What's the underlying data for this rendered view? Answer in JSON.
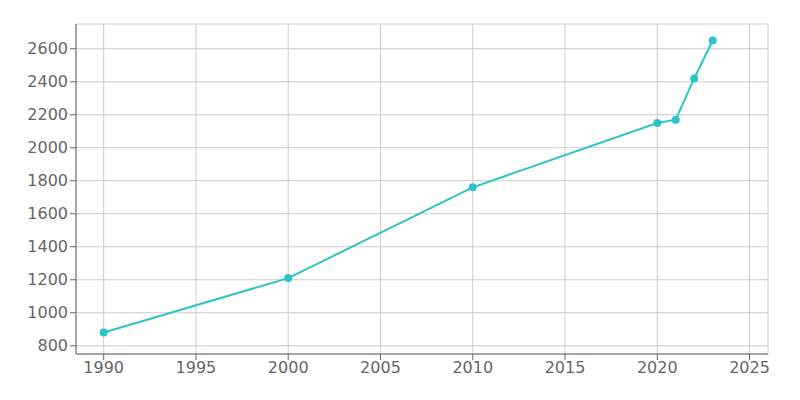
{
  "chart_data": {
    "type": "line",
    "x": [
      1990,
      2000,
      2010,
      2020,
      2021,
      2022,
      2023
    ],
    "values": [
      880,
      1210,
      1760,
      2150,
      2170,
      2420,
      2650
    ],
    "color": "#2ec4c4",
    "marker": "circle",
    "xlim": [
      1988.5,
      2026
    ],
    "ylim": [
      750,
      2750
    ],
    "xticks": [
      1990,
      1995,
      2000,
      2005,
      2010,
      2015,
      2020,
      2025
    ],
    "yticks": [
      800,
      1000,
      1200,
      1400,
      1600,
      1800,
      2000,
      2200,
      2400,
      2600
    ],
    "grid": true
  }
}
